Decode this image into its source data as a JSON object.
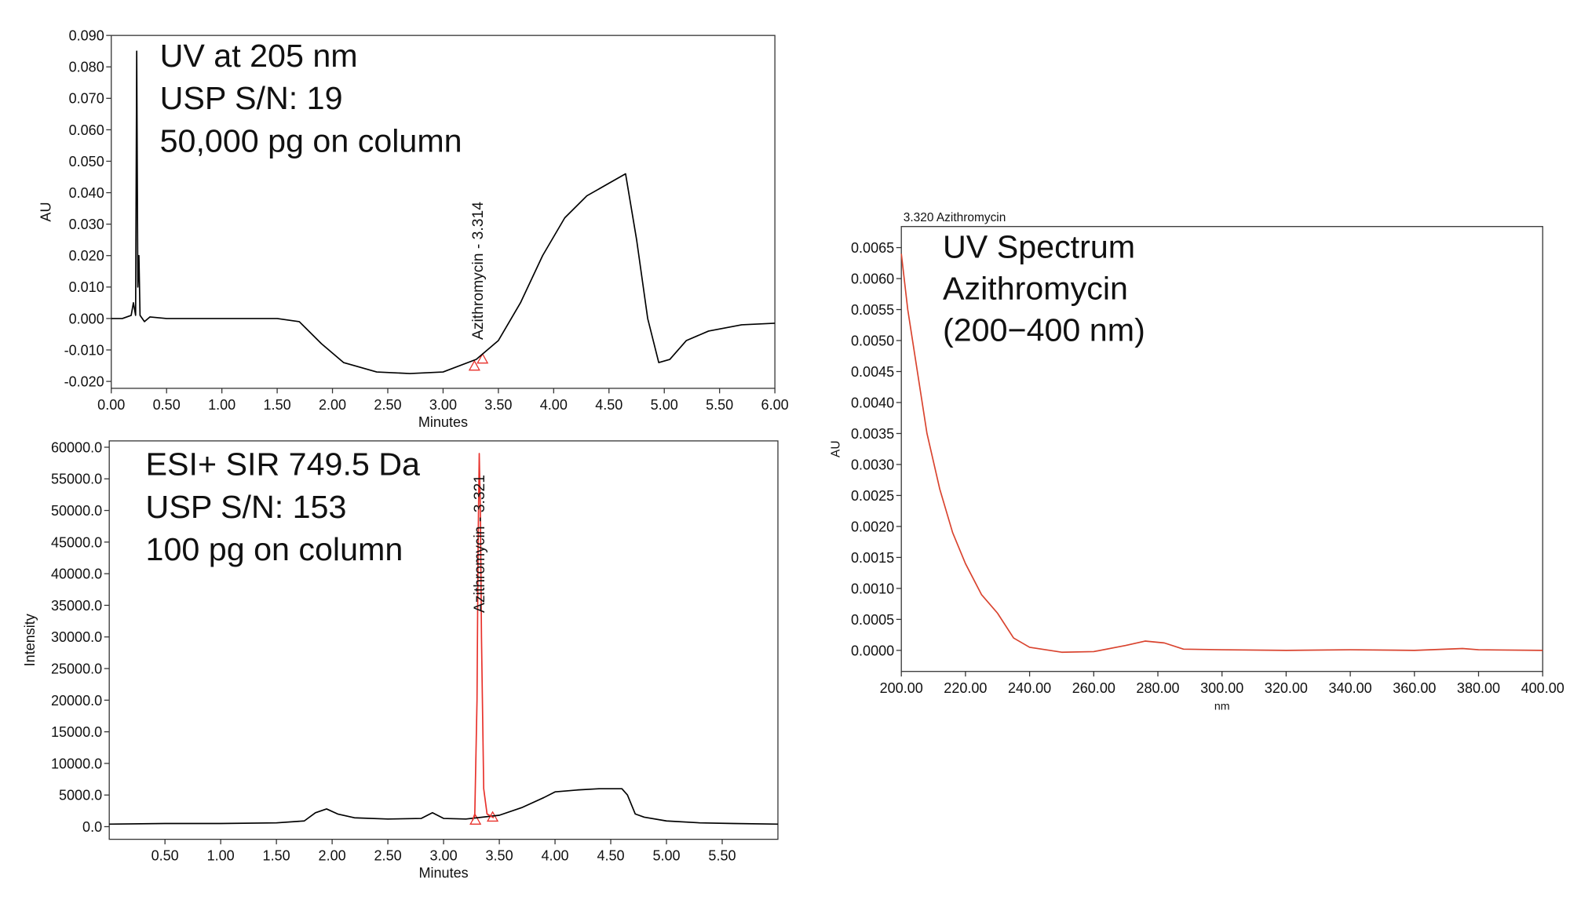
{
  "chart_data": [
    {
      "type": "line",
      "xlabel": "Minutes",
      "ylabel": "AU",
      "annotations": [
        "UV at 205 nm",
        "USP S/N: 19",
        "50,000 pg on column"
      ],
      "peak_label": "Azithromycin - 3.314",
      "peak_x": 3.314,
      "xlim": [
        0,
        6
      ],
      "ylim": [
        -0.0222,
        0.09
      ],
      "xticks": [
        {
          "value": 0,
          "label": "0.00"
        },
        {
          "value": 0.5,
          "label": "0.50"
        },
        {
          "value": 1,
          "label": "1.00"
        },
        {
          "value": 1.5,
          "label": "1.50"
        },
        {
          "value": 2,
          "label": "2.00"
        },
        {
          "value": 2.5,
          "label": "2.50"
        },
        {
          "value": 3,
          "label": "3.00"
        },
        {
          "value": 3.5,
          "label": "3.50"
        },
        {
          "value": 4,
          "label": "4.00"
        },
        {
          "value": 4.5,
          "label": "4.50"
        },
        {
          "value": 5,
          "label": "5.00"
        },
        {
          "value": 5.5,
          "label": "5.50"
        },
        {
          "value": 6,
          "label": "6.00"
        }
      ],
      "yticks": [
        {
          "value": -0.02,
          "label": "-0.020"
        },
        {
          "value": -0.01,
          "label": "-0.010"
        },
        {
          "value": 0,
          "label": "0.000"
        },
        {
          "value": 0.01,
          "label": "0.010"
        },
        {
          "value": 0.02,
          "label": "0.020"
        },
        {
          "value": 0.03,
          "label": "0.030"
        },
        {
          "value": 0.04,
          "label": "0.040"
        },
        {
          "value": 0.05,
          "label": "0.050"
        },
        {
          "value": 0.06,
          "label": "0.060"
        },
        {
          "value": 0.07,
          "label": "0.070"
        },
        {
          "value": 0.08,
          "label": "0.080"
        },
        {
          "value": 0.09,
          "label": "0.090"
        }
      ],
      "series": [
        {
          "color": "#000000",
          "x": [
            0,
            0.1,
            0.18,
            0.2,
            0.22,
            0.23,
            0.24,
            0.25,
            0.26,
            0.3,
            0.35,
            0.5,
            1.0,
            1.5,
            1.7,
            1.9,
            2.1,
            2.4,
            2.7,
            3.0,
            3.3,
            3.5,
            3.7,
            3.9,
            4.1,
            4.3,
            4.5,
            4.65,
            4.75,
            4.85,
            4.95,
            5.05,
            5.2,
            5.4,
            5.7,
            6.0
          ],
          "values": [
            0,
            0,
            0.001,
            0.005,
            0.001,
            0.085,
            0.01,
            0.02,
            0.001,
            -0.001,
            0.0005,
            0,
            0,
            0,
            -0.001,
            -0.008,
            -0.014,
            -0.017,
            -0.0175,
            -0.017,
            -0.013,
            -0.007,
            0.005,
            0.02,
            0.032,
            0.039,
            0.043,
            0.046,
            0.025,
            0.0,
            -0.014,
            -0.013,
            -0.007,
            -0.004,
            -0.002,
            -0.0015
          ]
        }
      ]
    },
    {
      "type": "line",
      "xlabel": "Minutes",
      "ylabel": "Intensity",
      "annotations": [
        "ESI+ SIR 749.5 Da",
        "USP S/N: 153",
        "100 pg on column"
      ],
      "peak_label": "Azithromycin - 3.321",
      "peak_x": 3.321,
      "xlim": [
        0,
        6
      ],
      "ylim": [
        -2000,
        61000
      ],
      "xticks": [
        {
          "value": 0.5,
          "label": "0.50"
        },
        {
          "value": 1,
          "label": "1.00"
        },
        {
          "value": 1.5,
          "label": "1.50"
        },
        {
          "value": 2,
          "label": "2.00"
        },
        {
          "value": 2.5,
          "label": "2.50"
        },
        {
          "value": 3,
          "label": "3.00"
        },
        {
          "value": 3.5,
          "label": "3.50"
        },
        {
          "value": 4,
          "label": "4.00"
        },
        {
          "value": 4.5,
          "label": "4.50"
        },
        {
          "value": 5,
          "label": "5.00"
        },
        {
          "value": 5.5,
          "label": "5.50"
        }
      ],
      "yticks": [
        {
          "value": 0,
          "label": "0.0"
        },
        {
          "value": 5000,
          "label": "5000.0"
        },
        {
          "value": 10000,
          "label": "10000.0"
        },
        {
          "value": 15000,
          "label": "15000.0"
        },
        {
          "value": 20000,
          "label": "20000.0"
        },
        {
          "value": 25000,
          "label": "25000.0"
        },
        {
          "value": 30000,
          "label": "30000.0"
        },
        {
          "value": 35000,
          "label": "35000.0"
        },
        {
          "value": 40000,
          "label": "40000.0"
        },
        {
          "value": 45000,
          "label": "45000.0"
        },
        {
          "value": 50000,
          "label": "50000.0"
        },
        {
          "value": 55000,
          "label": "55000.0"
        },
        {
          "value": 60000,
          "label": "60000.0"
        }
      ],
      "series": [
        {
          "color": "#000000",
          "x": [
            0,
            0.5,
            1.0,
            1.5,
            1.75,
            1.85,
            1.95,
            2.05,
            2.2,
            2.5,
            2.8,
            2.9,
            3.0,
            3.2,
            3.5,
            3.7,
            3.9,
            4.0,
            4.2,
            4.4,
            4.6,
            4.65,
            4.72,
            4.8,
            5.0,
            5.3,
            5.6,
            6.0
          ],
          "values": [
            400,
            500,
            500,
            600,
            900,
            2200,
            2800,
            2000,
            1400,
            1200,
            1300,
            2200,
            1300,
            1200,
            1800,
            3000,
            4600,
            5500,
            5800,
            6000,
            6000,
            5000,
            2000,
            1500,
            900,
            600,
            500,
            400
          ]
        },
        {
          "color": "#e8312b",
          "x": [
            3.26,
            3.28,
            3.3,
            3.31,
            3.32,
            3.33,
            3.34,
            3.36,
            3.39,
            3.45
          ],
          "values": [
            1000,
            2000,
            20000,
            45000,
            59000,
            50000,
            30000,
            6000,
            2000,
            1400
          ]
        }
      ]
    },
    {
      "type": "line",
      "title": "3.320 Azithromycin",
      "xlabel": "nm",
      "ylabel": "AU",
      "annotations": [
        "UV Spectrum",
        "Azithromycin",
        "(200−400 nm)"
      ],
      "xlim": [
        200,
        400
      ],
      "ylim": [
        -0.00034,
        0.00684
      ],
      "xticks": [
        {
          "value": 200,
          "label": "200.00"
        },
        {
          "value": 220,
          "label": "220.00"
        },
        {
          "value": 240,
          "label": "240.00"
        },
        {
          "value": 260,
          "label": "260.00"
        },
        {
          "value": 280,
          "label": "280.00"
        },
        {
          "value": 300,
          "label": "300.00"
        },
        {
          "value": 320,
          "label": "320.00"
        },
        {
          "value": 340,
          "label": "340.00"
        },
        {
          "value": 360,
          "label": "360.00"
        },
        {
          "value": 380,
          "label": "380.00"
        },
        {
          "value": 400,
          "label": "400.00"
        }
      ],
      "yticks": [
        {
          "value": 0,
          "label": "0.0000"
        },
        {
          "value": 0.0005,
          "label": "0.0005"
        },
        {
          "value": 0.001,
          "label": "0.0010"
        },
        {
          "value": 0.0015,
          "label": "0.0015"
        },
        {
          "value": 0.002,
          "label": "0.0020"
        },
        {
          "value": 0.0025,
          "label": "0.0025"
        },
        {
          "value": 0.003,
          "label": "0.0030"
        },
        {
          "value": 0.0035,
          "label": "0.0035"
        },
        {
          "value": 0.004,
          "label": "0.0040"
        },
        {
          "value": 0.0045,
          "label": "0.0045"
        },
        {
          "value": 0.005,
          "label": "0.0050"
        },
        {
          "value": 0.0055,
          "label": "0.0055"
        },
        {
          "value": 0.006,
          "label": "0.0060"
        },
        {
          "value": 0.0065,
          "label": "0.0065"
        }
      ],
      "series": [
        {
          "color": "#d9432e",
          "x": [
            200,
            202,
            205,
            208,
            212,
            216,
            220,
            225,
            230,
            235,
            240,
            250,
            260,
            270,
            276,
            282,
            288,
            300,
            320,
            340,
            360,
            375,
            380,
            400
          ],
          "values": [
            0.0064,
            0.0055,
            0.0045,
            0.0035,
            0.0026,
            0.0019,
            0.0014,
            0.0009,
            0.0006,
            0.0002,
            5e-05,
            -3e-05,
            -2e-05,
            8e-05,
            0.00015,
            0.00012,
            2e-05,
            1e-05,
            0.0,
            1e-05,
            0.0,
            3e-05,
            1e-05,
            0.0
          ]
        }
      ]
    }
  ]
}
